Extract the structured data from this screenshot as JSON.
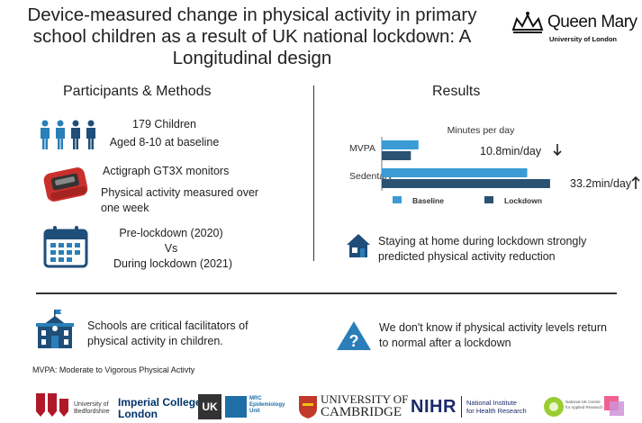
{
  "title": "Device-measured change in physical activity in primary school children as a result of UK national lockdown: A Longitudinal design",
  "brand": {
    "name": "Queen Mary",
    "sub": "University of London",
    "crown": "crown-logo"
  },
  "left": {
    "heading": "Participants & Methods",
    "participants": {
      "count": "179 Children",
      "age": "Aged 8-10 at baseline",
      "icon": "children-icon"
    },
    "device": {
      "name": "Actigraph GT3X monitors",
      "measure": "Physical activity measured over one week",
      "icon": "accelerometer-icon"
    },
    "timing": {
      "pre": "Pre-lockdown (2020)",
      "vs": "Vs",
      "during": "During lockdown (2021)",
      "icon": "calendar-icon"
    }
  },
  "right": {
    "heading": "Results",
    "finding": "Staying at home during lockdown strongly predicted physical activity reduction",
    "finding_icon": "house-icon"
  },
  "chart_data": {
    "type": "bar",
    "orientation": "horizontal",
    "title": "Minutes per day",
    "categories": [
      "MVPA",
      "Sedentary"
    ],
    "series": [
      {
        "name": "Baseline",
        "values": [
          53,
          210
        ],
        "color": "#3a9bd5"
      },
      {
        "name": "Lockdown",
        "values": [
          42,
          243
        ],
        "color": "#2c5272"
      }
    ],
    "annotations": [
      {
        "category": "MVPA",
        "text": "10.8min/day",
        "direction": "down"
      },
      {
        "category": "Sedentary",
        "text": "33.2min/day",
        "direction": "up"
      }
    ],
    "xlim": [
      0,
      260
    ],
    "legend": "bottom"
  },
  "bottom": {
    "schools": "Schools are critical facilitators of physical activity in children.",
    "schools_icon": "school-icon",
    "unknown": "We don't know if physical activity levels return to normal after a lockdown",
    "unknown_icon": "question-warning-icon",
    "footnote": "MVPA: Moderate to Vigorous Physical Activty"
  },
  "logos": {
    "bedfordshire": [
      "University of",
      "Bedfordshire"
    ],
    "imperial": [
      "Imperial College",
      "London"
    ],
    "ukri": "UK",
    "mrc": [
      "MRC",
      "Epidemiology",
      "Unit"
    ],
    "cambridge": [
      "UNIVERSITY OF",
      "CAMBRIDGE"
    ],
    "nihr": "NIHR",
    "nihr_sub": [
      "National Institute",
      "for Health Research"
    ],
    "arc": [
      "National UK Centre",
      "for Applied Research"
    ]
  },
  "colors": {
    "baseline": "#3a9bd5",
    "lockdown": "#2c5272",
    "icon_navy": "#1f4e79",
    "icon_teal": "#2a7fb8",
    "warning": "#2a7fb8"
  }
}
